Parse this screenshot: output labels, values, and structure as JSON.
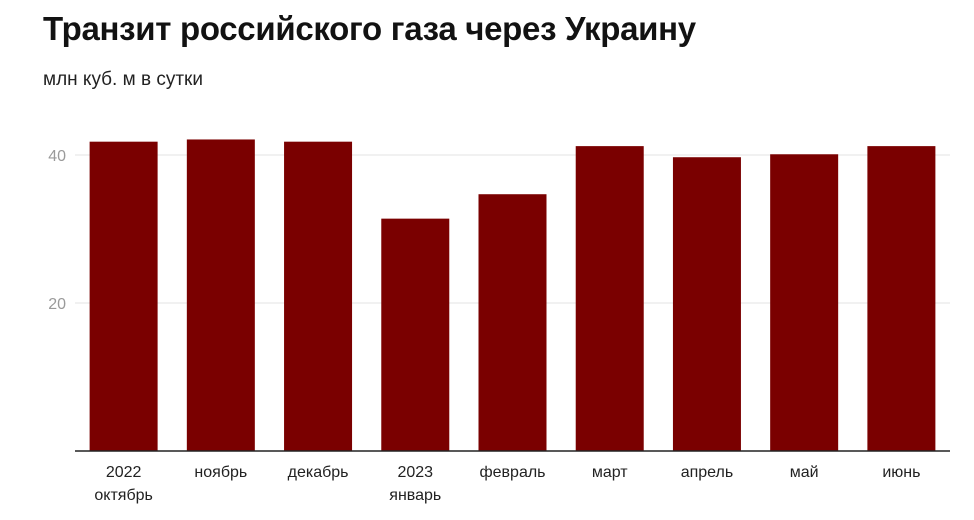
{
  "header": {
    "title": "Транзит российского газа через Украину",
    "subtitle": "млн куб. м в сутки"
  },
  "colors": {
    "bar": "#7a0000",
    "grid": "#e3e3e3",
    "axis": "#222222",
    "tick_text": "#9a9a9a",
    "category_text": "#222222"
  },
  "chart_data": {
    "type": "bar",
    "title": "Транзит российского газа через Украину",
    "ylabel": "млн куб. м в сутки",
    "categories": [
      [
        "2022",
        "октябрь"
      ],
      [
        "ноябрь"
      ],
      [
        "декабрь"
      ],
      [
        "2023",
        "январь"
      ],
      [
        "февраль"
      ],
      [
        "март"
      ],
      [
        "апрель"
      ],
      [
        "май"
      ],
      [
        "июнь"
      ]
    ],
    "values": [
      41.8,
      42.1,
      41.8,
      31.4,
      34.7,
      41.2,
      39.7,
      40.1,
      41.2
    ],
    "ylim": [
      0,
      45
    ],
    "yticks": [
      20,
      40
    ],
    "grid": true,
    "legend": "none"
  }
}
